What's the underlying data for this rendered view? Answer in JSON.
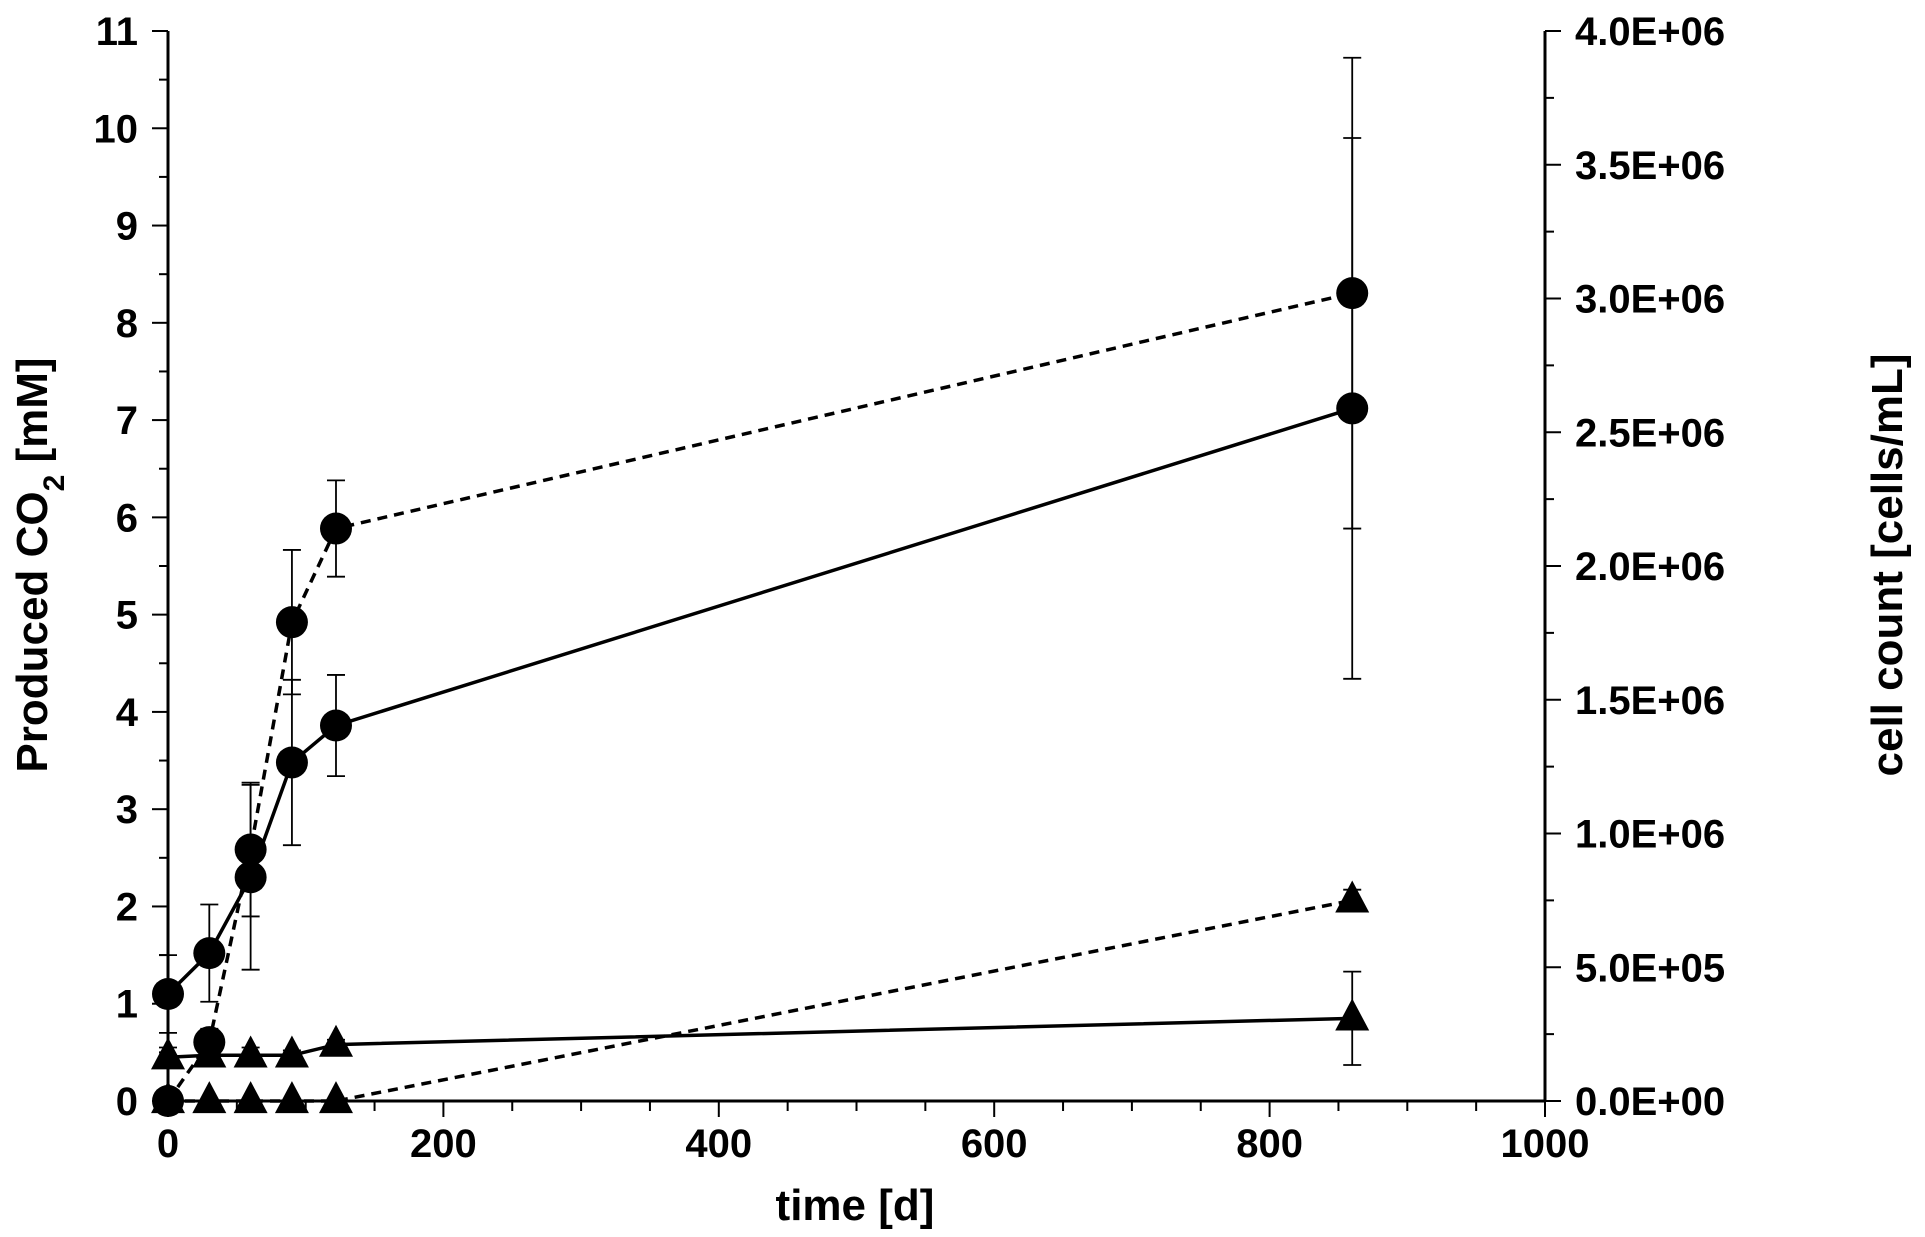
{
  "chart_data": {
    "type": "line",
    "xlabel": "time [d]",
    "ylabel_left": {
      "main": "Produced CO",
      "sub": "2",
      "unit": " [mM]"
    },
    "ylabel_right": "cell count [cells/mL]",
    "xlim": [
      0,
      1000
    ],
    "ylim_left": [
      0,
      11
    ],
    "ylim_right": [
      0,
      4000000
    ],
    "x_ticks": [
      0,
      200,
      400,
      600,
      800,
      1000
    ],
    "x_tick_labels": [
      "0",
      "200",
      "400",
      "600",
      "800",
      "1000"
    ],
    "y_left_ticks": [
      0,
      1,
      2,
      3,
      4,
      5,
      6,
      7,
      8,
      9,
      10,
      11
    ],
    "y_left_tick_labels": [
      "0",
      "1",
      "2",
      "3",
      "4",
      "5",
      "6",
      "7",
      "8",
      "9",
      "10",
      "11"
    ],
    "y_right_ticks": [
      0,
      500000,
      1000000,
      1500000,
      2000000,
      2500000,
      3000000,
      3500000,
      4000000
    ],
    "y_right_tick_labels": [
      "0.0E+00",
      "5.0E+05",
      "1.0E+06",
      "1.5E+06",
      "2.0E+06",
      "2.5E+06",
      "3.0E+06",
      "3.5E+06",
      "4.0E+06"
    ],
    "grid": false,
    "legend": "none",
    "series": [
      {
        "axis": "left",
        "marker": "circle",
        "line": "solid",
        "x": [
          0,
          30,
          60,
          90,
          122,
          860
        ],
        "y": [
          1.1,
          1.52,
          2.3,
          3.48,
          3.86,
          7.12
        ],
        "err": [
          0.4,
          0.5,
          0.95,
          0.85,
          0.52,
          2.78
        ]
      },
      {
        "axis": "right",
        "marker": "circle",
        "line": "dashed",
        "x": [
          0,
          30,
          60,
          90,
          122,
          860
        ],
        "y": [
          0,
          220000,
          940000,
          1790000,
          2140000,
          3020000
        ],
        "err": [
          0,
          50000,
          250000,
          270000,
          180000,
          880000
        ]
      },
      {
        "axis": "left",
        "marker": "triangle",
        "line": "solid",
        "x": [
          0,
          30,
          60,
          90,
          122,
          860
        ],
        "y": [
          0.45,
          0.47,
          0.47,
          0.47,
          0.58,
          0.85
        ],
        "err": [
          0.1,
          0.1,
          0.08,
          0.05,
          0.05,
          0.48
        ]
      },
      {
        "axis": "right",
        "marker": "triangle",
        "line": "dashed",
        "x": [
          0,
          30,
          60,
          90,
          122,
          860
        ],
        "y": [
          0,
          0,
          0,
          0,
          0,
          750000
        ],
        "err": [
          0,
          0,
          0,
          0,
          0,
          40000
        ]
      }
    ]
  }
}
